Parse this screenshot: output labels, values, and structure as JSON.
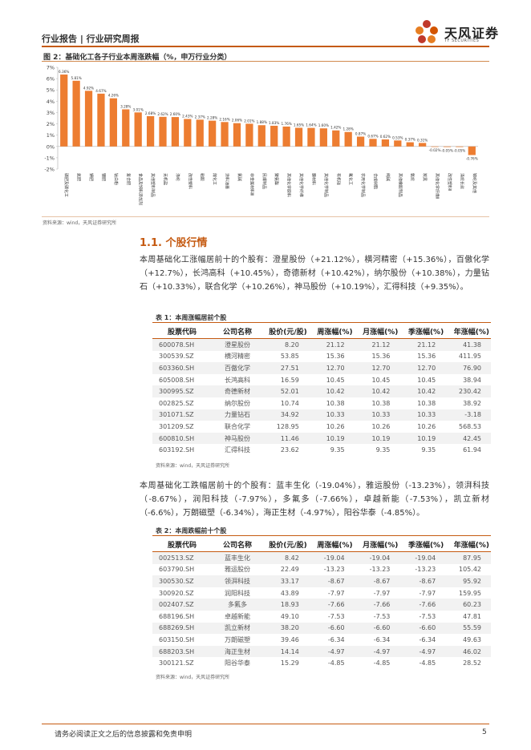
{
  "header": {
    "left": "行业报告 | 行业研究周报",
    "logo_name": "天风证券",
    "logo_sub": "TF SECURITIES"
  },
  "figure": {
    "title": "图 2：基础化工各子行业本周涨跌幅（%，申万行业分类）",
    "source": "资料来源：wind，天风证券研究所"
  },
  "chart_data": {
    "type": "bar",
    "title": "",
    "xlabel": "",
    "ylabel": "",
    "ylim": [
      -2,
      7
    ],
    "yticks": [
      "7%",
      "6%",
      "5%",
      "4%",
      "3%",
      "2%",
      "1%",
      "0%",
      "-1%",
      "-2%"
    ],
    "grid": false,
    "bar_color": "#ED7D31",
    "categories": [
      "磷肥及磷化工",
      "氮肥",
      "钾肥",
      "锂肥",
      "钛白粉",
      "复合肥",
      "食品及饲料添加剂",
      "其他塑料制品",
      "无机盐",
      "涤纶",
      "改性塑料",
      "粘胶",
      "煤化工",
      "涂料油墨",
      "氯碱",
      "非金属材料Ⅲ",
      "民爆制品",
      "聚氨酯",
      "其他化学原料",
      "其他化学纤维",
      "膜材料",
      "其他化学制品",
      "有机硅",
      "氟化工",
      "农用化学制品",
      "合成树脂",
      "纯碱",
      "其他橡胶制品",
      "氨纶",
      "炭黑",
      "其他化学纤维Ⅱ",
      "改性塑料Ⅱ",
      "涤纶长丝",
      "锦纶及其他"
    ],
    "values": [
      6.36,
      5.81,
      4.92,
      4.67,
      4.26,
      3.28,
      3.01,
      2.68,
      2.62,
      2.6,
      2.43,
      2.37,
      2.28,
      2.16,
      2.06,
      2.01,
      1.88,
      1.83,
      1.76,
      1.65,
      1.64,
      1.6,
      1.42,
      1.28,
      0.87,
      0.67,
      0.62,
      0.53,
      0.37,
      0.31,
      -0.02,
      -0.05,
      -0.05,
      -0.76
    ],
    "data_labels": [
      "6.36%",
      "5.81%",
      "4.92%",
      "4.67%",
      "4.26%",
      "3.28%",
      "3.01%",
      "2.68%",
      "2.62%",
      "2.60%",
      "2.43%",
      "2.37%",
      "2.28%",
      "2.16%",
      "2.06%",
      "2.01%",
      "1.88%",
      "1.83%",
      "1.76%",
      "1.65%",
      "1.64%",
      "1.60%",
      "1.42%",
      "1.28%",
      "0.87%",
      "0.67%",
      "0.62%",
      "0.53%",
      "0.37%",
      "0.31%",
      "-0.02%",
      "-0.05%",
      "-0.05%",
      "-0.76%"
    ]
  },
  "section": {
    "title": "1.1. 个股行情",
    "para1": "本周基础化工涨幅居前十的个股有：澄星股份（+21.12%），横河精密（+15.36%），百傲化学（+12.7%），长鸿高科（+10.45%），奇德新材（+10.42%），纳尔股份（+10.38%），力量钻石（+10.33%），联合化学（+10.26%），神马股份（+10.19%），汇得科技（+9.35%）。",
    "para2": "本周基础化工跌幅居前十的个股有：蓝丰生化（-19.04%），雅运股份（-13.23%），领湃科技（-8.67%），润阳科技（-7.97%），多氟多（-7.66%），卓越新能（-7.53%），凯立新材（-6.6%），万朗磁塑（-6.34%），海正生材（-4.97%），阳谷华泰（-4.85%）。"
  },
  "table_headers": [
    "股票代码",
    "公司名称",
    "股价(元/股)",
    "周涨幅(%)",
    "月涨幅(%)",
    "季涨幅(%)",
    "年涨幅(%)"
  ],
  "table1": {
    "title": "表 1：本周涨幅居前个股",
    "rows": [
      [
        "600078.SH",
        "澄星股份",
        "8.20",
        "21.12",
        "21.12",
        "21.12",
        "41.38"
      ],
      [
        "300539.SZ",
        "横河精密",
        "53.85",
        "15.36",
        "15.36",
        "15.36",
        "411.95"
      ],
      [
        "603360.SH",
        "百傲化学",
        "27.51",
        "12.70",
        "12.70",
        "12.70",
        "76.90"
      ],
      [
        "605008.SH",
        "长鸿高科",
        "16.59",
        "10.45",
        "10.45",
        "10.45",
        "38.94"
      ],
      [
        "300995.SZ",
        "奇德新材",
        "52.01",
        "10.42",
        "10.42",
        "10.42",
        "230.42"
      ],
      [
        "002825.SZ",
        "纳尔股份",
        "10.74",
        "10.38",
        "10.38",
        "10.38",
        "38.92"
      ],
      [
        "301071.SZ",
        "力量钻石",
        "34.92",
        "10.33",
        "10.33",
        "10.33",
        "-3.18"
      ],
      [
        "301209.SZ",
        "联合化学",
        "128.95",
        "10.26",
        "10.26",
        "10.26",
        "568.53"
      ],
      [
        "600810.SH",
        "神马股份",
        "11.46",
        "10.19",
        "10.19",
        "10.19",
        "42.45"
      ],
      [
        "603192.SH",
        "汇得科技",
        "23.62",
        "9.35",
        "9.35",
        "9.35",
        "61.94"
      ]
    ],
    "source": "资料来源：wind，天风证券研究所"
  },
  "table2": {
    "title": "表 2：本周跌幅前十个股",
    "rows": [
      [
        "002513.SZ",
        "蓝丰生化",
        "8.42",
        "-19.04",
        "-19.04",
        "-19.04",
        "87.95"
      ],
      [
        "603790.SH",
        "雅运股份",
        "22.49",
        "-13.23",
        "-13.23",
        "-13.23",
        "105.42"
      ],
      [
        "300530.SZ",
        "领湃科技",
        "33.17",
        "-8.67",
        "-8.67",
        "-8.67",
        "95.92"
      ],
      [
        "300920.SZ",
        "润阳科技",
        "43.89",
        "-7.97",
        "-7.97",
        "-7.97",
        "159.95"
      ],
      [
        "002407.SZ",
        "多氟多",
        "18.93",
        "-7.66",
        "-7.66",
        "-7.66",
        "60.23"
      ],
      [
        "688196.SH",
        "卓越新能",
        "49.10",
        "-7.53",
        "-7.53",
        "-7.53",
        "47.81"
      ],
      [
        "688269.SH",
        "凯立新材",
        "38.20",
        "-6.60",
        "-6.60",
        "-6.60",
        "55.59"
      ],
      [
        "603150.SH",
        "万朗磁塑",
        "39.46",
        "-6.34",
        "-6.34",
        "-6.34",
        "49.63"
      ],
      [
        "688203.SH",
        "海正生材",
        "14.14",
        "-4.97",
        "-4.97",
        "-4.97",
        "46.02"
      ],
      [
        "300121.SZ",
        "阳谷华泰",
        "15.29",
        "-4.85",
        "-4.85",
        "-4.85",
        "28.52"
      ]
    ],
    "source": "资料来源：wind，天风证券研究所"
  },
  "footer": {
    "disclaimer": "请务必阅读正文之后的信息披露和免责申明",
    "page": "5"
  }
}
